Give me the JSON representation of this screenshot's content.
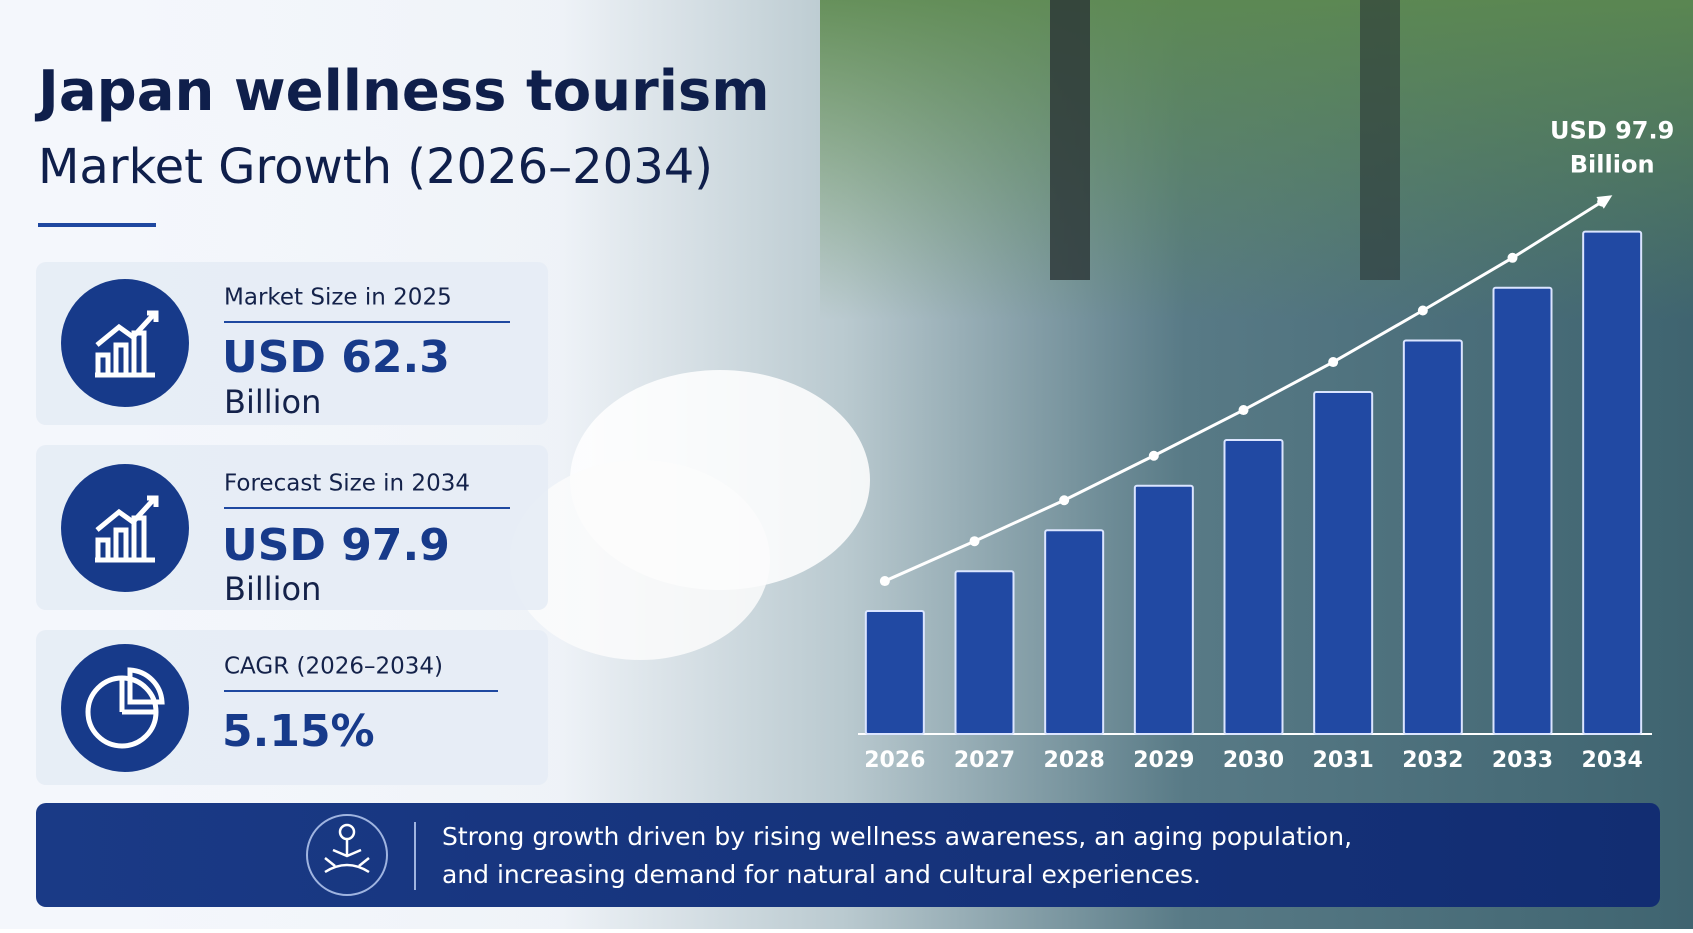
{
  "title": "Japan wellness tourism",
  "subtitle": "Market Growth (2026–2034)",
  "cards": [
    {
      "label": "Market Size in 2025",
      "value": "USD 62.3",
      "unit": "Billion"
    },
    {
      "label": "Forecast Size in 2034",
      "value": "USD 97.9",
      "unit": "Billion"
    },
    {
      "label": "CAGR (2026–2034)",
      "value": "5.15%"
    }
  ],
  "footer": {
    "lines": [
      "Strong growth driven by rising wellness awareness, an aging population,",
      "and increasing demand for natural and cultural experiences."
    ]
  },
  "chart_data": {
    "type": "bar",
    "categories": [
      "2026",
      "2027",
      "2028",
      "2029",
      "2030",
      "2031",
      "2032",
      "2033",
      "2034"
    ],
    "values": [
      65.5,
      68.9,
      72.4,
      76.2,
      80.1,
      84.2,
      88.6,
      93.1,
      97.9
    ],
    "value_labels": [
      null,
      null,
      null,
      null,
      null,
      null,
      null,
      null,
      "USD 97.9 Billion"
    ],
    "color": "#2149a3",
    "ylim": [
      55,
      100
    ],
    "trend_line": true
  }
}
